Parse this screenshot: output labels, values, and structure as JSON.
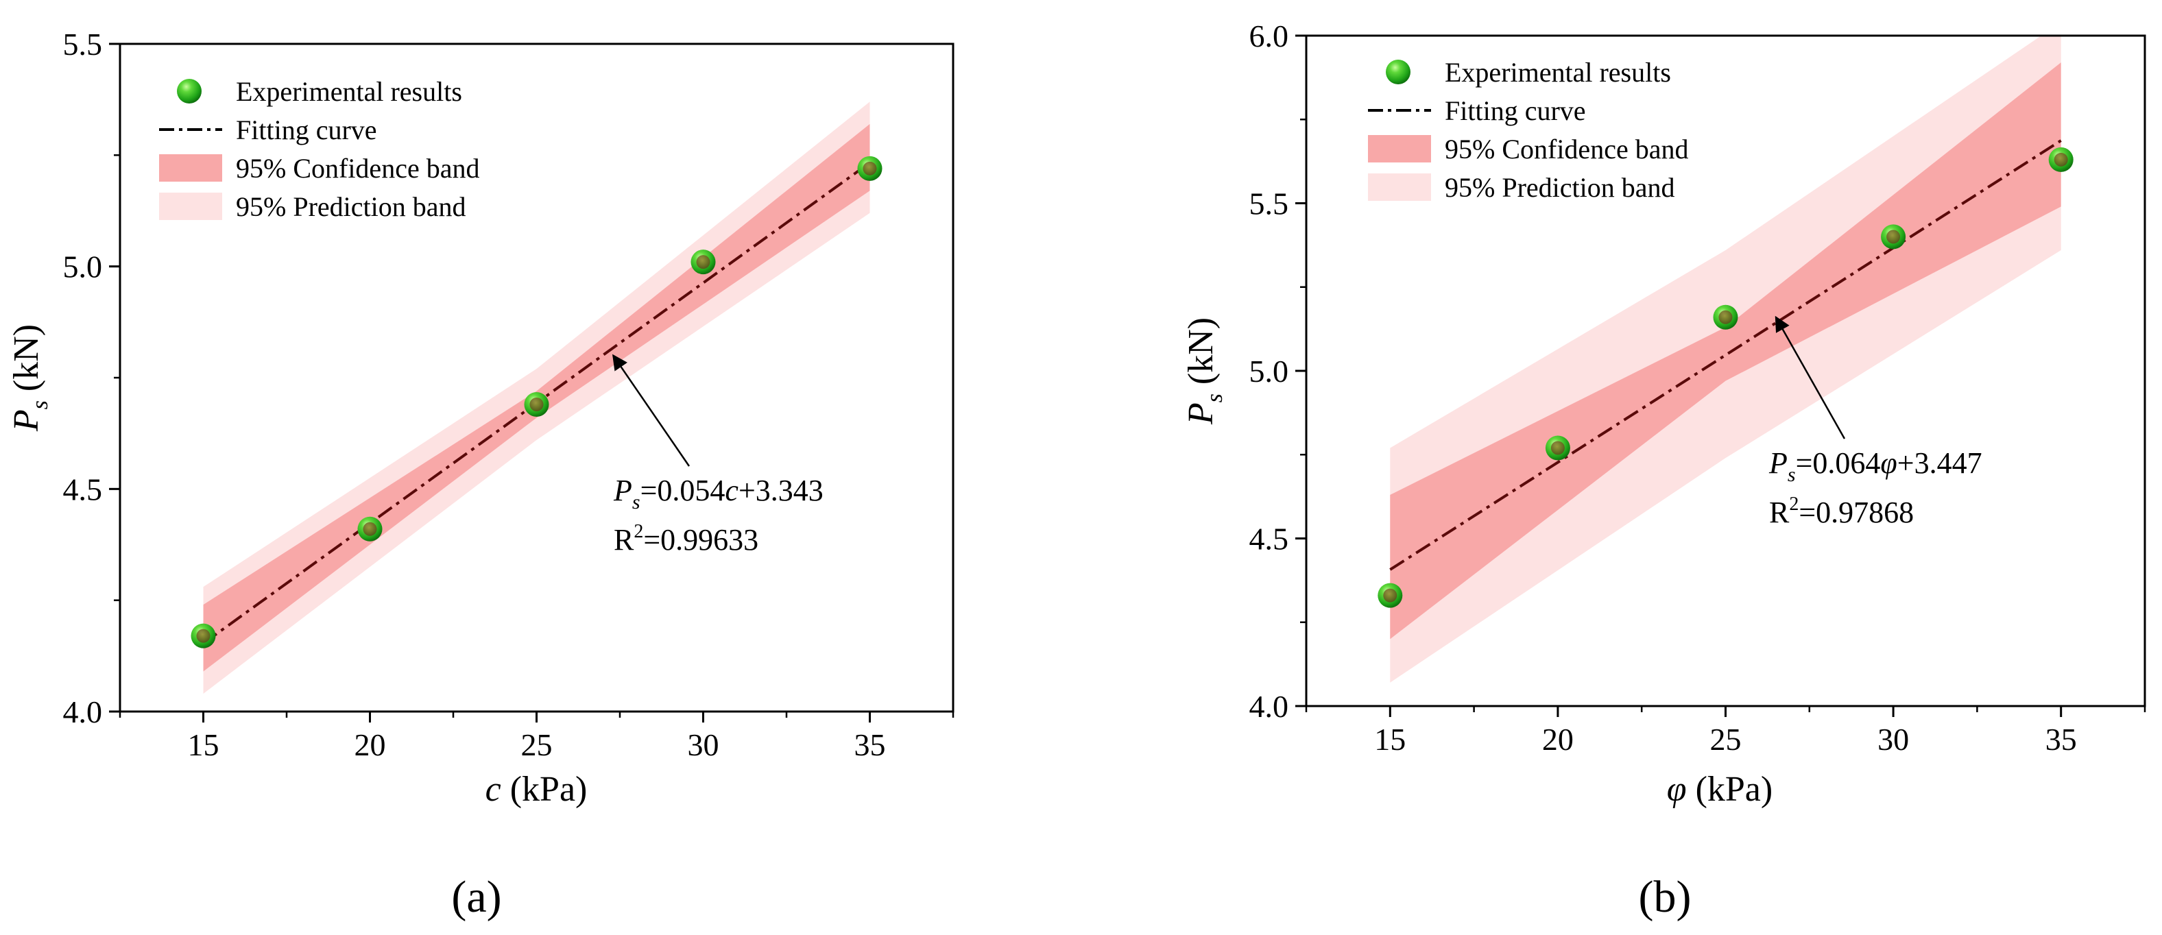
{
  "chart_data": [
    {
      "type": "scatter",
      "panel_label": "(a)",
      "xlabel_var": "c",
      "xlabel_unit": " (kPa)",
      "ylabel_var": "P",
      "ylabel_sub": "s",
      "ylabel_unit": " (kN)",
      "xlim": [
        12.5,
        37.5
      ],
      "ylim": [
        4.0,
        5.5
      ],
      "xticks": [
        15,
        20,
        25,
        30,
        35
      ],
      "yticks": [
        4.0,
        4.5,
        5.0,
        5.5
      ],
      "ytick_labels": [
        "4.0",
        "4.5",
        "5.0",
        "5.5"
      ],
      "series": [
        {
          "name": "Experimental results",
          "x": [
            15,
            20,
            25,
            30,
            35
          ],
          "y": [
            4.17,
            4.41,
            4.69,
            5.01,
            5.22
          ]
        }
      ],
      "fit": {
        "name": "Fitting curve",
        "slope": 0.054,
        "intercept": 3.343
      },
      "confidence_band": {
        "name": "95% Confidence band",
        "x": [
          15,
          25,
          35
        ],
        "lower": [
          4.09,
          4.66,
          5.17
        ],
        "upper": [
          4.24,
          4.72,
          5.32
        ]
      },
      "prediction_band": {
        "name": "95% Prediction band",
        "x": [
          15,
          25,
          35
        ],
        "lower": [
          4.04,
          4.61,
          5.12
        ],
        "upper": [
          4.28,
          4.77,
          5.37
        ]
      },
      "equation": {
        "var": "P",
        "sub": "s",
        "text_pre": "=0.054",
        "text_var": "c",
        "text_post": "+3.343",
        "r2_pre": "R",
        "r2_sup": "2",
        "r2_post": "=0.99633",
        "arrow_tip": [
          27.3,
          4.8
        ]
      },
      "legend": {
        "position": "top-left",
        "items": [
          "Experimental results",
          "Fitting curve",
          "95% Confidence band",
          "95% Prediction band"
        ]
      }
    },
    {
      "type": "scatter",
      "panel_label": "(b)",
      "xlabel_var": "φ",
      "xlabel_unit": " (kPa)",
      "ylabel_var": "P",
      "ylabel_sub": "s",
      "ylabel_unit": " (kN)",
      "xlim": [
        12.5,
        37.5
      ],
      "ylim": [
        4.0,
        6.0
      ],
      "xticks": [
        15,
        20,
        25,
        30,
        35
      ],
      "yticks": [
        4.0,
        4.5,
        5.0,
        5.5,
        6.0
      ],
      "ytick_labels": [
        "4.0",
        "4.5",
        "5.0",
        "5.5",
        "6.0"
      ],
      "series": [
        {
          "name": "Experimental results",
          "x": [
            15,
            20,
            25,
            30,
            35
          ],
          "y": [
            4.33,
            4.77,
            5.16,
            5.4,
            5.63
          ]
        }
      ],
      "fit": {
        "name": "Fitting curve",
        "slope": 0.064,
        "intercept": 3.447
      },
      "confidence_band": {
        "name": "95% Confidence band",
        "x": [
          15,
          25,
          35
        ],
        "lower": [
          4.2,
          4.97,
          5.49
        ],
        "upper": [
          4.63,
          5.13,
          5.92
        ]
      },
      "prediction_band": {
        "name": "95% Prediction band",
        "x": [
          15,
          25,
          35
        ],
        "lower": [
          4.07,
          4.74,
          5.36
        ],
        "upper": [
          4.77,
          5.36,
          6.04
        ]
      },
      "equation": {
        "var": "P",
        "sub": "s",
        "text_pre": "=0.064",
        "text_var": "φ",
        "text_post": "+3.447",
        "r2_pre": "R",
        "r2_sup": "2",
        "r2_post": "=0.97868",
        "arrow_tip": [
          26.5,
          5.16
        ]
      },
      "legend": {
        "position": "top-left",
        "items": [
          "Experimental results",
          "Fitting curve",
          "95% Confidence band",
          "95% Prediction band"
        ]
      }
    }
  ],
  "colors": {
    "confidence_band": "#f8a8a8",
    "prediction_band": "#fde2e2",
    "fit_line": "#5a0a0a",
    "marker_center": "#a4f27c",
    "marker_edge": "#1c9e14",
    "marker_inner": "#7c7a24"
  }
}
